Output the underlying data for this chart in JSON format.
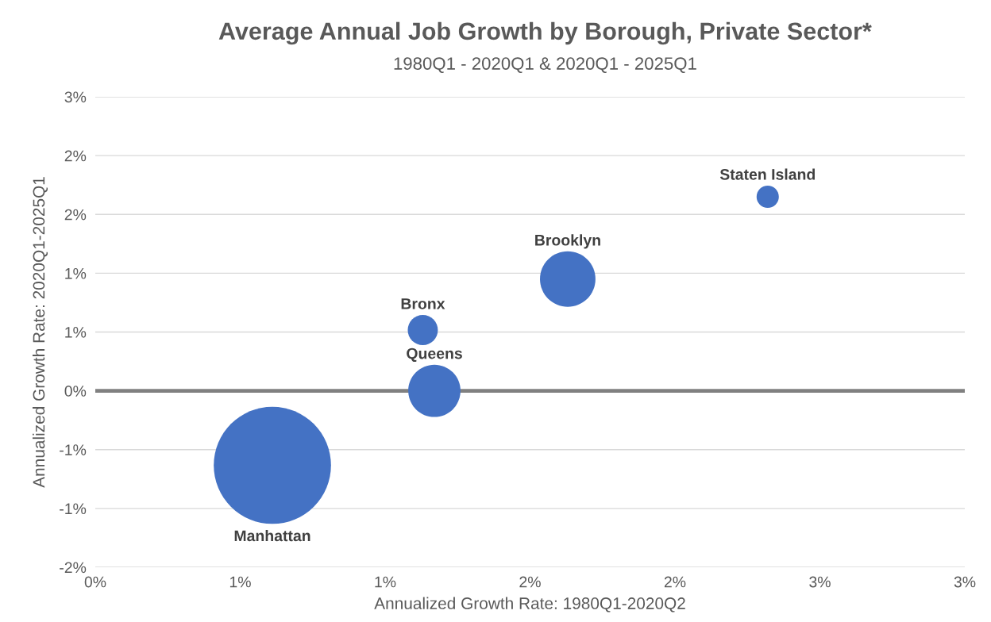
{
  "chart_data": {
    "type": "bubble",
    "title": "Average Annual Job Growth by Borough, Private Sector*",
    "subtitle": "1980Q1 - 2020Q1 & 2020Q1 - 2025Q1",
    "xlabel": "Annualized Growth Rate: 1980Q1-2020Q2",
    "ylabel": "Annualized Growth Rate: 2020Q1-2025Q1",
    "series": [
      {
        "name": "Staten Island",
        "color": "#4472c4",
        "x": [
          2.32
        ],
        "values": [
          1.98
        ],
        "sizes": [
          0.036
        ]
      },
      {
        "name": "Brooklyn",
        "color": "#4472c4",
        "x": [
          1.63
        ],
        "values": [
          1.14
        ],
        "sizes": [
          0.224
        ]
      },
      {
        "name": "Bronx",
        "color": "#4472c4",
        "x": [
          1.13
        ],
        "values": [
          0.62
        ],
        "sizes": [
          0.066
        ]
      },
      {
        "name": "Queens",
        "color": "#4472c4",
        "x": [
          1.17
        ],
        "values": [
          0.0
        ],
        "sizes": [
          0.199
        ]
      },
      {
        "name": "Manhattan",
        "color": "#4472c4",
        "x": [
          0.611
        ],
        "values": [
          -0.76
        ],
        "sizes": [
          1
        ]
      }
    ],
    "xlim": [
      0,
      3.0
    ],
    "xticks": [
      {
        "value": 0,
        "label": "0%"
      },
      {
        "value": 0.5,
        "label": "1%"
      },
      {
        "value": 1.0,
        "label": "1%"
      },
      {
        "value": 1.5,
        "label": "2%"
      },
      {
        "value": 2.0,
        "label": "2%"
      },
      {
        "value": 2.5,
        "label": "3%"
      },
      {
        "value": 3.0,
        "label": "3%"
      }
    ],
    "ylim": [
      -1.8,
      3.0
    ],
    "yticks": [
      {
        "value": -1.8,
        "label": "-2%"
      },
      {
        "value": -1.2,
        "label": "-1%"
      },
      {
        "value": -0.6,
        "label": "-1%"
      },
      {
        "value": 0,
        "label": "0%"
      },
      {
        "value": 0.6,
        "label": "1%"
      },
      {
        "value": 1.2,
        "label": "1%"
      },
      {
        "value": 1.8,
        "label": "2%"
      },
      {
        "value": 2.4,
        "label": "2%"
      },
      {
        "value": 3.0,
        "label": "3%"
      }
    ],
    "ref_lines": [
      {
        "axis": "y",
        "value": 0,
        "color": "#808080"
      }
    ],
    "grid": "y",
    "legend": false
  }
}
